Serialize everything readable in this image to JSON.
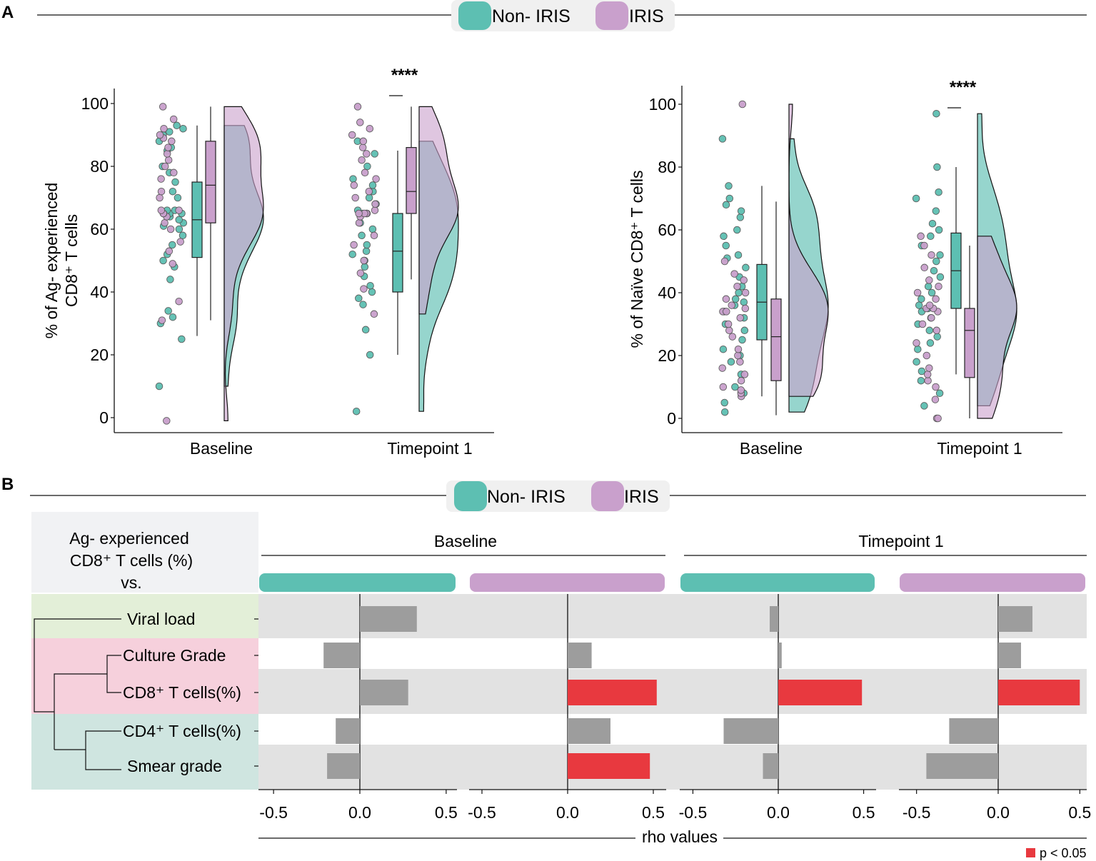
{
  "colors": {
    "non_iris": "#5dbfb2",
    "iris": "#c9a0cc",
    "overlap": "#8a93c0",
    "significant": "#e8393f",
    "nonsignificant": "#9d9d9d",
    "band": "#e2e2e2"
  },
  "legend": {
    "non_iris": "Non- IRIS",
    "iris": "IRIS"
  },
  "panel_labels": {
    "a": "A",
    "b": "B"
  },
  "chart_data": [
    {
      "id": "ag-experienced",
      "type": "raincloud",
      "ylabel_line1": "% of  Ag- experienced",
      "ylabel_line2": "CD8⁺ T cells",
      "ylim": [
        0,
        100
      ],
      "yticks": [
        0,
        20,
        40,
        60,
        80,
        100
      ],
      "categories": [
        "Baseline",
        "Timepoint 1"
      ],
      "significance": [
        {
          "category": "Timepoint 1",
          "label": "****"
        }
      ],
      "groups": {
        "Baseline": {
          "non_iris": {
            "box": {
              "min": 26,
              "q1": 51,
              "median": 63,
              "q3": 75,
              "max": 93
            },
            "points": [
              10,
              25,
              30,
              32,
              34,
              44,
              48,
              50,
              52,
              55,
              58,
              60,
              61,
              62,
              63,
              64,
              65,
              65,
              66,
              66,
              70,
              72,
              75,
              78,
              80,
              85,
              86,
              88,
              90,
              91,
              92,
              93
            ]
          },
          "iris": {
            "box": {
              "min": 31,
              "q1": 62,
              "median": 74,
              "q3": 88,
              "max": 99
            },
            "points": [
              -1,
              31,
              37,
              49,
              53,
              56,
              60,
              62,
              64,
              65,
              65,
              66,
              66,
              70,
              72,
              76,
              78,
              80,
              82,
              84,
              86,
              88,
              89,
              90,
              92,
              95,
              99
            ]
          }
        },
        "Timepoint 1": {
          "non_iris": {
            "box": {
              "min": 20,
              "q1": 40,
              "median": 53,
              "q3": 65,
              "max": 85
            },
            "points": [
              2,
              20,
              28,
              36,
              38,
              40,
              42,
              45,
              48,
              50,
              52,
              53,
              55,
              58,
              60,
              62,
              65,
              66,
              68,
              70,
              72,
              74,
              76,
              80,
              84,
              88
            ]
          },
          "iris": {
            "box": {
              "min": 44,
              "q1": 65,
              "median": 72,
              "q3": 86,
              "max": 99
            },
            "points": [
              33,
              41,
              46,
              50,
              55,
              58,
              62,
              64,
              65,
              65,
              65,
              65,
              66,
              68,
              70,
              72,
              74,
              76,
              78,
              82,
              84,
              86,
              88,
              90,
              92,
              94,
              99
            ]
          }
        }
      }
    },
    {
      "id": "naive",
      "type": "raincloud",
      "ylabel_line1": "% of  Naïve  CD8⁺ T cells",
      "ylabel_line2": "",
      "ylim": [
        0,
        100
      ],
      "yticks": [
        0,
        20,
        40,
        60,
        80,
        100
      ],
      "categories": [
        "Baseline",
        "Timepoint 1"
      ],
      "significance": [
        {
          "category": "Timepoint 1",
          "label": "****"
        }
      ],
      "groups": {
        "Baseline": {
          "non_iris": {
            "box": {
              "min": 7,
              "q1": 25,
              "median": 37,
              "q3": 49,
              "max": 74
            },
            "points": [
              2,
              5,
              8,
              10,
              14,
              18,
              20,
              22,
              25,
              28,
              30,
              32,
              34,
              36,
              37,
              38,
              40,
              42,
              45,
              48,
              51,
              52,
              55,
              58,
              60,
              64,
              66,
              68,
              70,
              74,
              89
            ]
          },
          "iris": {
            "box": {
              "min": 1,
              "q1": 12,
              "median": 26,
              "q3": 38,
              "max": 69
            },
            "points": [
              7,
              8,
              9,
              10,
              12,
              14,
              16,
              18,
              20,
              22,
              26,
              28,
              30,
              32,
              34,
              34,
              35,
              36,
              38,
              40,
              42,
              44,
              46,
              50,
              100
            ]
          }
        },
        "Timepoint 1": {
          "non_iris": {
            "box": {
              "min": 14,
              "q1": 35,
              "median": 47,
              "q3": 59,
              "max": 80
            },
            "points": [
              4,
              8,
              12,
              15,
              18,
              22,
              24,
              26,
              28,
              30,
              32,
              34,
              35,
              36,
              38,
              40,
              42,
              45,
              47,
              50,
              52,
              55,
              58,
              60,
              62,
              66,
              70,
              72,
              80,
              97
            ]
          },
          "iris": {
            "box": {
              "min": 0,
              "q1": 13,
              "median": 28,
              "q3": 35,
              "max": 55
            },
            "points": [
              0,
              0,
              6,
              10,
              12,
              14,
              16,
              20,
              24,
              28,
              30,
              32,
              34,
              35,
              35,
              36,
              38,
              40,
              42,
              44,
              48,
              52,
              55,
              58
            ]
          }
        }
      }
    },
    {
      "id": "correlation",
      "type": "bar",
      "title_lines": [
        "Ag- experienced",
        "CD8⁺ T cells (%)",
        "vs."
      ],
      "timepoints": [
        "Baseline",
        "Timepoint 1"
      ],
      "series": [
        {
          "name": "Baseline Non-IRIS",
          "group": "non_iris",
          "values": [
            0.33,
            -0.21,
            0.28,
            -0.14,
            -0.19
          ],
          "significant": [
            false,
            false,
            false,
            false,
            false
          ]
        },
        {
          "name": "Baseline IRIS",
          "group": "iris",
          "values": [
            0.0,
            0.14,
            0.52,
            0.25,
            0.48
          ],
          "significant": [
            false,
            false,
            true,
            false,
            true
          ]
        },
        {
          "name": "Timepoint 1 Non-IRIS",
          "group": "non_iris",
          "values": [
            -0.05,
            0.02,
            0.49,
            -0.32,
            -0.09
          ],
          "significant": [
            false,
            false,
            true,
            false,
            false
          ]
        },
        {
          "name": "Timepoint 1 IRIS",
          "group": "iris",
          "values": [
            0.21,
            0.14,
            0.5,
            -0.3,
            -0.44
          ],
          "significant": [
            false,
            false,
            true,
            false,
            false
          ]
        }
      ],
      "categories": [
        "Viral load",
        "Culture Grade",
        "CD8⁺ T cells(%)",
        "CD4⁺ T cells(%)",
        "Smear grade"
      ],
      "xlim": [
        -0.6,
        0.55
      ],
      "xticks": [
        -0.5,
        0.0,
        0.5
      ],
      "xtick_labels": [
        "-0.5",
        "0.0",
        "0.5"
      ],
      "xlabel": "rho values",
      "significance_legend": "p < 0.05"
    }
  ]
}
